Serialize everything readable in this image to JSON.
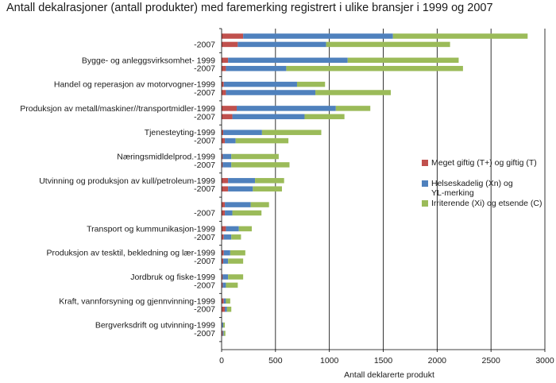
{
  "chart_data": {
    "type": "bar",
    "orientation": "horizontal",
    "stacked": true,
    "title": "Antall  dekalrasjoner (antall produkter) med faremerking registrert i ulike bransjer i 1999 og 2007",
    "xlabel": "Antall deklarerte produkt",
    "ylabel": "",
    "xlim": [
      0,
      3000
    ],
    "xticks": [
      0,
      500,
      1000,
      1500,
      2000,
      2500,
      3000
    ],
    "grid": "vertical",
    "legend_position": "right",
    "categories": [
      "",
      "-2007",
      "Bygge- og anleggsvirksomhet- 1999",
      "-2007",
      "Handel og reperasjon av motorvogner-1999",
      "-2007",
      "Produksjon av metall/maskiner//transportmidler-1999",
      "-2007",
      "Tjenesteyting-1999",
      "-2007",
      "Næringsmidldelprod.-1999",
      "-2007",
      "Utvinning og produksjon av kull/petroleum-1999",
      "-2007",
      "",
      "-2007",
      "Transport og kummunikasjon-1999",
      "-2007",
      "Produksjon av tesktil, bekledning og lær-1999",
      "-2007",
      "Jordbruk og fiske-1999",
      "-2007",
      "Kraft, vannforsyning og gjennvinning-1999",
      "-2007",
      "Bergverksdrift og utvinning-1999",
      "-2007"
    ],
    "series": [
      {
        "name": "Meget giftig (T+) og giftig (T)",
        "color": "#c0504d",
        "values": [
          200,
          150,
          60,
          40,
          20,
          40,
          140,
          100,
          15,
          30,
          10,
          10,
          60,
          60,
          30,
          30,
          40,
          20,
          20,
          15,
          10,
          10,
          20,
          30,
          5,
          10
        ]
      },
      {
        "name": "Helseskadelig (Xn) og YL-merking",
        "color": "#4f81bd",
        "values": [
          1390,
          820,
          1110,
          560,
          680,
          830,
          920,
          670,
          360,
          100,
          80,
          80,
          250,
          230,
          240,
          70,
          120,
          70,
          60,
          45,
          50,
          30,
          20,
          20,
          10,
          10
        ]
      },
      {
        "name": "Irriterende (Xi) og etsende (C)",
        "color": "#9bbb59",
        "values": [
          1250,
          1150,
          1030,
          1640,
          260,
          700,
          320,
          370,
          550,
          490,
          440,
          540,
          270,
          270,
          170,
          270,
          120,
          90,
          140,
          140,
          140,
          110,
          40,
          40,
          15,
          15
        ]
      }
    ]
  }
}
